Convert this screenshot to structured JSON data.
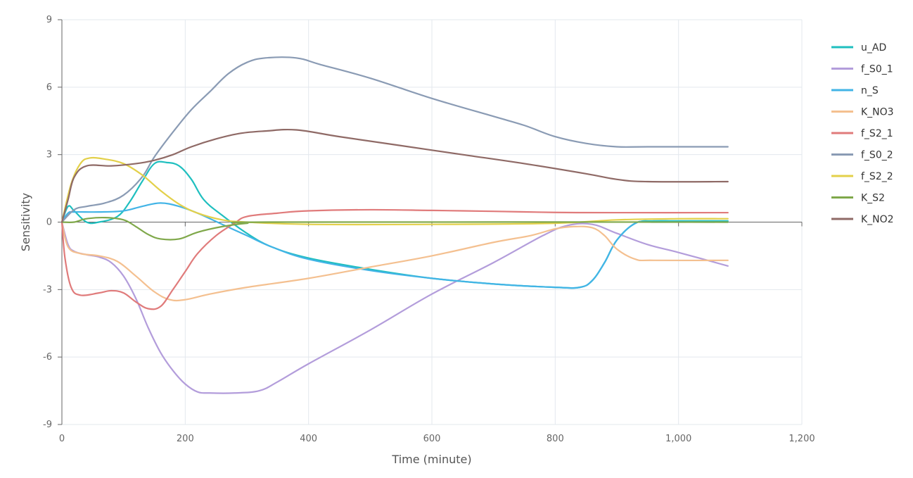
{
  "chart_data": {
    "type": "line",
    "title": "",
    "xlabel": "Time (minute)",
    "ylabel": "Sensitivity",
    "xlim": [
      0,
      1200
    ],
    "ylim": [
      -9,
      9
    ],
    "xticks": [
      0,
      200,
      400,
      600,
      800,
      1000,
      1200
    ],
    "xtick_labels": [
      "0",
      "200",
      "400",
      "600",
      "800",
      "1,000",
      "1,200"
    ],
    "yticks": [
      -9,
      -6,
      -3,
      0,
      3,
      6,
      9
    ],
    "ytick_labels": [
      "-9",
      "-6",
      "-3",
      "0",
      "3",
      "6",
      "9"
    ],
    "grid": true,
    "legend_position": "right",
    "series": [
      {
        "name": "u_AD",
        "color": "#1fbfbf",
        "points": [
          [
            0,
            0
          ],
          [
            10,
            0.7
          ],
          [
            20,
            0.5
          ],
          [
            40,
            0
          ],
          [
            60,
            0
          ],
          [
            90,
            0.25
          ],
          [
            110,
            0.9
          ],
          [
            130,
            1.8
          ],
          [
            150,
            2.6
          ],
          [
            170,
            2.65
          ],
          [
            190,
            2.5
          ],
          [
            210,
            1.9
          ],
          [
            230,
            1.0
          ],
          [
            260,
            0.3
          ],
          [
            300,
            -0.5
          ],
          [
            340,
            -1.1
          ],
          [
            400,
            -1.6
          ],
          [
            500,
            -2.1
          ],
          [
            600,
            -2.5
          ],
          [
            700,
            -2.75
          ],
          [
            800,
            -2.9
          ],
          [
            840,
            -2.9
          ],
          [
            860,
            -2.6
          ],
          [
            880,
            -1.8
          ],
          [
            900,
            -0.8
          ],
          [
            930,
            -0.05
          ],
          [
            960,
            0.05
          ],
          [
            1000,
            0.05
          ],
          [
            1080,
            0.05
          ]
        ]
      },
      {
        "name": "f_S0_1",
        "color": "#b39ddb",
        "points": [
          [
            0,
            0
          ],
          [
            10,
            -1.0
          ],
          [
            20,
            -1.3
          ],
          [
            40,
            -1.45
          ],
          [
            60,
            -1.55
          ],
          [
            80,
            -1.8
          ],
          [
            100,
            -2.4
          ],
          [
            120,
            -3.4
          ],
          [
            140,
            -4.7
          ],
          [
            160,
            -5.8
          ],
          [
            180,
            -6.6
          ],
          [
            200,
            -7.2
          ],
          [
            220,
            -7.55
          ],
          [
            240,
            -7.6
          ],
          [
            280,
            -7.6
          ],
          [
            320,
            -7.5
          ],
          [
            350,
            -7.1
          ],
          [
            400,
            -6.3
          ],
          [
            500,
            -4.8
          ],
          [
            600,
            -3.2
          ],
          [
            700,
            -1.8
          ],
          [
            780,
            -0.6
          ],
          [
            820,
            -0.15
          ],
          [
            860,
            -0.1
          ],
          [
            900,
            -0.5
          ],
          [
            950,
            -1.0
          ],
          [
            1000,
            -1.35
          ],
          [
            1080,
            -1.95
          ]
        ]
      },
      {
        "name": "n_S",
        "color": "#42b4e6",
        "points": [
          [
            0,
            0
          ],
          [
            10,
            0.4
          ],
          [
            20,
            0.45
          ],
          [
            60,
            0.45
          ],
          [
            100,
            0.5
          ],
          [
            130,
            0.7
          ],
          [
            160,
            0.85
          ],
          [
            190,
            0.7
          ],
          [
            220,
            0.4
          ],
          [
            260,
            -0.1
          ],
          [
            300,
            -0.6
          ],
          [
            340,
            -1.1
          ],
          [
            400,
            -1.65
          ],
          [
            500,
            -2.15
          ],
          [
            600,
            -2.5
          ],
          [
            700,
            -2.75
          ],
          [
            800,
            -2.9
          ],
          [
            840,
            -2.9
          ],
          [
            860,
            -2.6
          ],
          [
            880,
            -1.8
          ],
          [
            900,
            -0.8
          ],
          [
            930,
            -0.05
          ],
          [
            960,
            0
          ],
          [
            1080,
            0
          ]
        ]
      },
      {
        "name": "K_NO3",
        "color": "#f4c090",
        "points": [
          [
            0,
            0
          ],
          [
            10,
            -1.1
          ],
          [
            30,
            -1.4
          ],
          [
            60,
            -1.5
          ],
          [
            90,
            -1.75
          ],
          [
            120,
            -2.4
          ],
          [
            150,
            -3.1
          ],
          [
            175,
            -3.45
          ],
          [
            200,
            -3.45
          ],
          [
            240,
            -3.2
          ],
          [
            300,
            -2.9
          ],
          [
            400,
            -2.5
          ],
          [
            500,
            -2.0
          ],
          [
            600,
            -1.5
          ],
          [
            700,
            -0.9
          ],
          [
            760,
            -0.6
          ],
          [
            800,
            -0.3
          ],
          [
            830,
            -0.2
          ],
          [
            860,
            -0.25
          ],
          [
            880,
            -0.6
          ],
          [
            900,
            -1.2
          ],
          [
            930,
            -1.65
          ],
          [
            960,
            -1.7
          ],
          [
            1080,
            -1.7
          ]
        ]
      },
      {
        "name": "f_S2_1",
        "color": "#e07b7b",
        "points": [
          [
            0,
            0
          ],
          [
            5,
            -1.6
          ],
          [
            15,
            -2.9
          ],
          [
            30,
            -3.25
          ],
          [
            60,
            -3.15
          ],
          [
            80,
            -3.05
          ],
          [
            100,
            -3.15
          ],
          [
            120,
            -3.55
          ],
          [
            140,
            -3.85
          ],
          [
            160,
            -3.75
          ],
          [
            180,
            -3.0
          ],
          [
            200,
            -2.2
          ],
          [
            220,
            -1.4
          ],
          [
            250,
            -0.6
          ],
          [
            280,
            -0.05
          ],
          [
            300,
            0.25
          ],
          [
            350,
            0.4
          ],
          [
            400,
            0.5
          ],
          [
            500,
            0.55
          ],
          [
            600,
            0.52
          ],
          [
            700,
            0.48
          ],
          [
            800,
            0.43
          ],
          [
            900,
            0.42
          ],
          [
            1080,
            0.42
          ]
        ]
      },
      {
        "name": "f_S0_2",
        "color": "#8a9bb4",
        "points": [
          [
            0,
            0
          ],
          [
            20,
            0.55
          ],
          [
            40,
            0.7
          ],
          [
            70,
            0.85
          ],
          [
            100,
            1.2
          ],
          [
            130,
            2.0
          ],
          [
            150,
            2.9
          ],
          [
            180,
            4.0
          ],
          [
            210,
            5.0
          ],
          [
            240,
            5.8
          ],
          [
            270,
            6.6
          ],
          [
            300,
            7.1
          ],
          [
            330,
            7.3
          ],
          [
            380,
            7.3
          ],
          [
            420,
            7.0
          ],
          [
            500,
            6.4
          ],
          [
            600,
            5.5
          ],
          [
            700,
            4.7
          ],
          [
            750,
            4.3
          ],
          [
            800,
            3.8
          ],
          [
            850,
            3.5
          ],
          [
            900,
            3.35
          ],
          [
            950,
            3.35
          ],
          [
            1080,
            3.35
          ]
        ]
      },
      {
        "name": "f_S2_2",
        "color": "#e3d04a",
        "points": [
          [
            0,
            0
          ],
          [
            15,
            1.7
          ],
          [
            30,
            2.6
          ],
          [
            45,
            2.85
          ],
          [
            70,
            2.8
          ],
          [
            100,
            2.6
          ],
          [
            130,
            2.1
          ],
          [
            160,
            1.4
          ],
          [
            190,
            0.8
          ],
          [
            220,
            0.4
          ],
          [
            260,
            0.1
          ],
          [
            300,
            0
          ],
          [
            400,
            -0.1
          ],
          [
            600,
            -0.1
          ],
          [
            800,
            -0.05
          ],
          [
            900,
            0.1
          ],
          [
            1000,
            0.15
          ],
          [
            1080,
            0.15
          ]
        ]
      },
      {
        "name": "K_S2",
        "color": "#7fa84a",
        "points": [
          [
            0,
            0
          ],
          [
            20,
            0
          ],
          [
            40,
            0.15
          ],
          [
            70,
            0.2
          ],
          [
            100,
            0.1
          ],
          [
            120,
            -0.2
          ],
          [
            140,
            -0.55
          ],
          [
            160,
            -0.75
          ],
          [
            190,
            -0.75
          ],
          [
            220,
            -0.45
          ],
          [
            260,
            -0.2
          ],
          [
            300,
            -0.05
          ],
          [
            350,
            0
          ],
          [
            1080,
            0
          ]
        ]
      },
      {
        "name": "K_NO2",
        "color": "#8f6a66",
        "points": [
          [
            0,
            0
          ],
          [
            10,
            1.0
          ],
          [
            20,
            2.0
          ],
          [
            40,
            2.5
          ],
          [
            80,
            2.5
          ],
          [
            120,
            2.6
          ],
          [
            150,
            2.75
          ],
          [
            180,
            3.0
          ],
          [
            210,
            3.35
          ],
          [
            250,
            3.7
          ],
          [
            290,
            3.95
          ],
          [
            330,
            4.05
          ],
          [
            380,
            4.1
          ],
          [
            450,
            3.8
          ],
          [
            550,
            3.4
          ],
          [
            650,
            3.0
          ],
          [
            750,
            2.6
          ],
          [
            850,
            2.15
          ],
          [
            900,
            1.9
          ],
          [
            950,
            1.8
          ],
          [
            1080,
            1.8
          ]
        ]
      }
    ]
  }
}
